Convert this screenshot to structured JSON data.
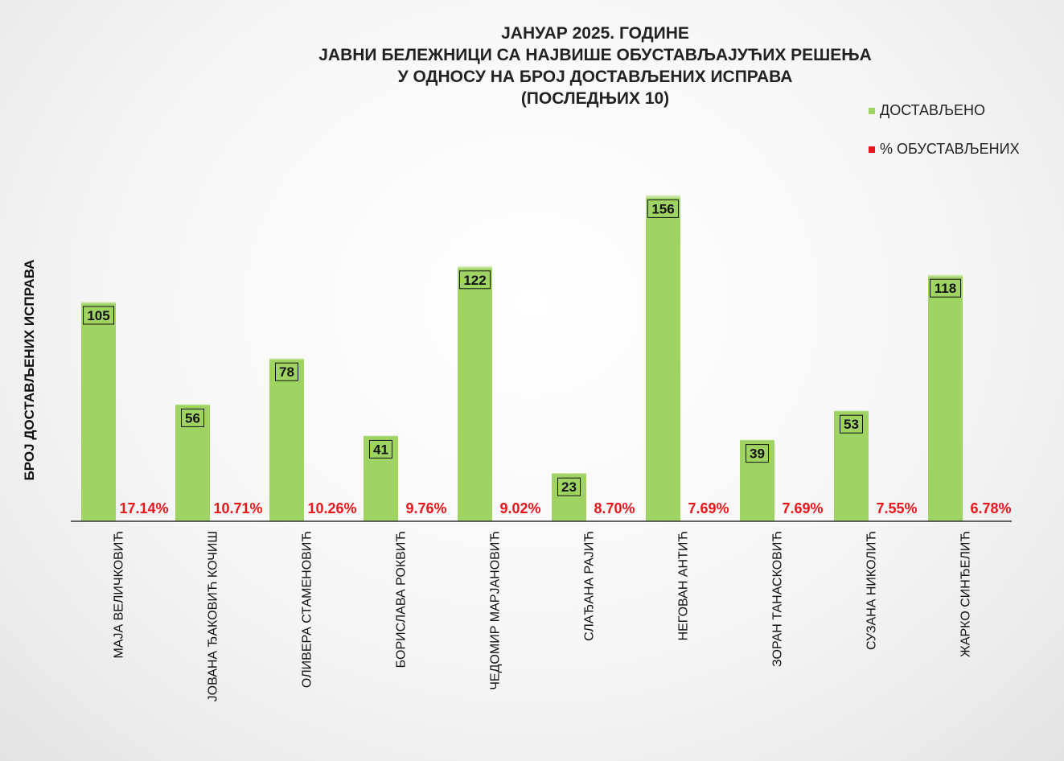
{
  "title_lines": [
    "ЈАНУАР 2025. ГОДИНЕ",
    "ЈАВНИ БЕЛЕЖНИЦИ СА НАЈВИШЕ ОБУСТАВЉАЈУЋИХ РЕШЕЊА",
    "У ОДНОСУ НА БРОЈ ДОСТАВЉЕНИХ ИСПРАВА",
    "(ПОСЛЕДЊИХ 10)"
  ],
  "legend": {
    "delivered": "ДОСТАВЉЕНО",
    "suspended_pct": "% ОБУСТАВЉЕНИХ"
  },
  "colors": {
    "bar": "#9fd464",
    "bar_top": "#e8f4d8",
    "pct": "#e8161b",
    "axis": "#333333"
  },
  "chart_data": {
    "type": "bar",
    "title": "ЈАНУАР 2025. ГОДИНЕ ЈАВНИ БЕЛЕЖНИЦИ СА НАЈВИШЕ ОБУСТАВЉАЈУЋИХ РЕШЕЊА У ОДНОСУ НА БРОЈ ДОСТАВЉЕНИХ ИСПРАВА (ПОСЛЕДЊИХ 10)",
    "xlabel": "",
    "ylabel": "БРОЈ ДОСТАВЉЕНИХ ИСПРАВА",
    "ylim": [
      0,
      160
    ],
    "grid": false,
    "legend_position": "top-right",
    "categories": [
      "МАЈА ВЕЛИЧКОВИЋ",
      "ЈОВАНА ЂАКОВИЋ КОЧИШ",
      "ОЛИВЕРА СТАМЕНОВИЋ",
      "БОРИСЛАВА РОКВИЋ",
      "ЧЕДОМИР МАРЈАНОВИЋ",
      "СЛАЂАНА РАЈИЋ",
      "НЕГОВАН АНТИЋ",
      "ЗОРАН ТАНАСКОВИЋ",
      "СУЗАНА НИКОЛИЋ",
      "ЖАРКО СИНЂЕЛИЋ"
    ],
    "series": [
      {
        "name": "ДОСТАВЉЕНО",
        "values": [
          105,
          56,
          78,
          41,
          122,
          23,
          156,
          39,
          53,
          118
        ]
      },
      {
        "name": "% ОБУСТАВЉЕНИХ",
        "values": [
          17.14,
          10.71,
          10.26,
          9.76,
          9.02,
          8.7,
          7.69,
          7.69,
          7.55,
          6.78
        ],
        "labels": [
          "17.14%",
          "10.71%",
          "10.26%",
          "9.76%",
          "9.02%",
          "8.70%",
          "7.69%",
          "7.69%",
          "7.55%",
          "6.78%"
        ]
      }
    ]
  }
}
